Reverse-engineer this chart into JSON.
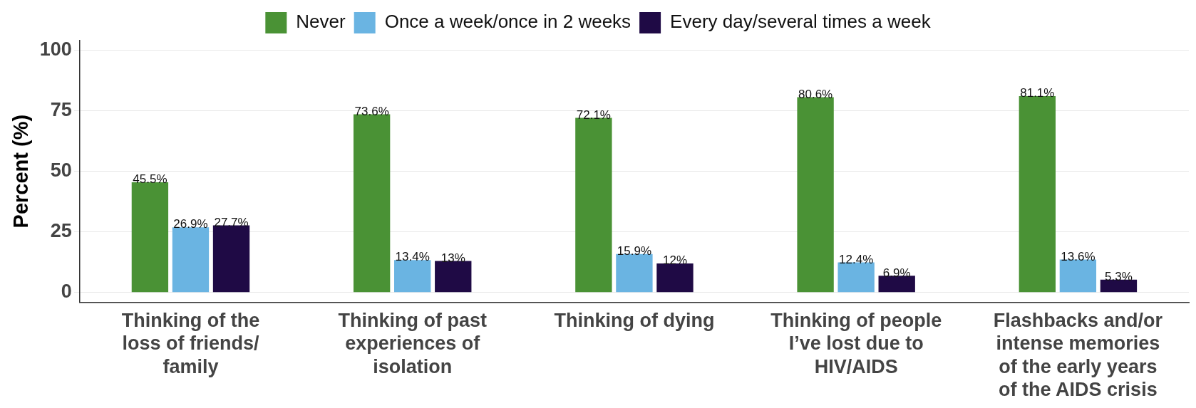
{
  "chart_data": {
    "type": "bar",
    "ylabel": "Percent (%)",
    "categories": [
      "Thinking of the loss of friends/ family",
      "Thinking of past experiences of isolation",
      "Thinking of dying",
      "Thinking of people I’ve lost due to HIV/AIDS",
      "Flashbacks and/or intense memories of the early years of the AIDS crisis"
    ],
    "series": [
      {
        "name": "Never",
        "color": "#4a9235",
        "values": [
          45.5,
          73.6,
          72.1,
          80.6,
          81.1
        ],
        "value_labels": [
          "45.5%",
          "73.6%",
          "72.1%",
          "80.6%",
          "81.1%"
        ]
      },
      {
        "name": "Once a week/once in 2 weeks",
        "color": "#6ab4e2",
        "values": [
          26.9,
          13.4,
          15.9,
          12.4,
          13.6
        ],
        "value_labels": [
          "26.9%",
          "13.4%",
          "15.9%",
          "12.4%",
          "13.6%"
        ]
      },
      {
        "name": "Every day/several times a week",
        "color": "#1f0a45",
        "values": [
          27.7,
          13,
          12,
          6.9,
          5.3
        ],
        "value_labels": [
          "27.7%",
          "13%",
          "12%",
          "6.9%",
          "5.3%"
        ]
      }
    ],
    "ylim": [
      -4,
      104
    ],
    "yticks": [
      0,
      25,
      50,
      75,
      100
    ],
    "grid": "y",
    "legend": "top"
  }
}
